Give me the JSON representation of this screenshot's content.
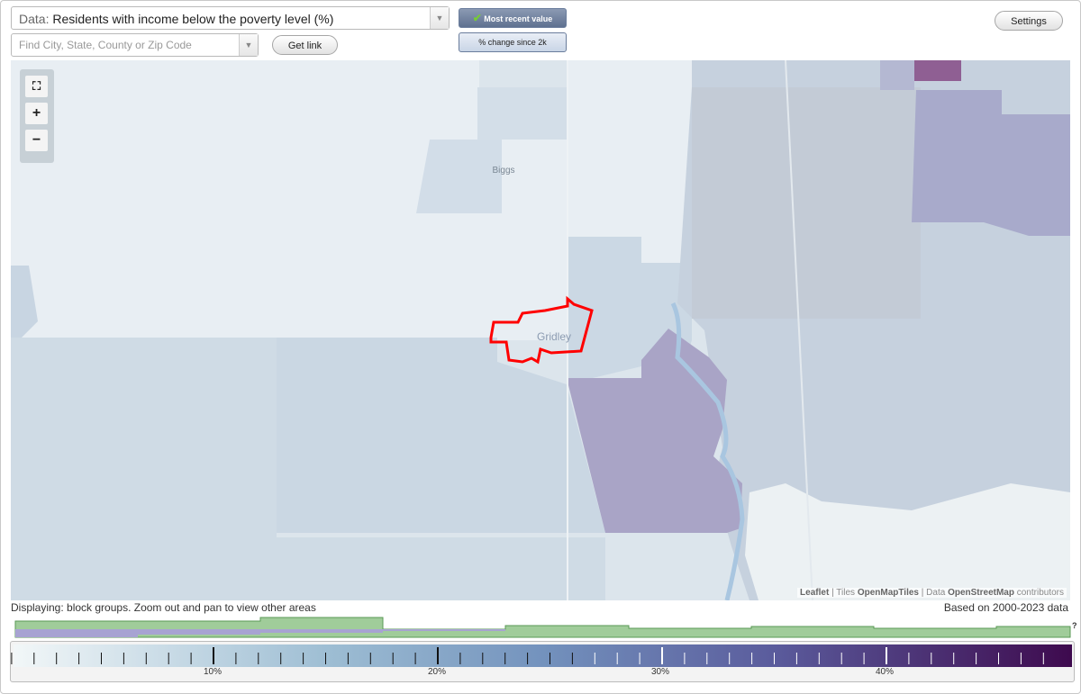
{
  "toolbar": {
    "data_label": "Data:",
    "data_value": "Residents with income below the poverty level (%)",
    "search_placeholder": "Find City, State, County or Zip Code",
    "get_link": "Get link",
    "toggle_recent": "Most recent value",
    "toggle_change": "% change since 2k",
    "settings": "Settings"
  },
  "map": {
    "places": [
      "Biggs",
      "Gridley"
    ],
    "zoom": {
      "fit": "⛶",
      "in": "+",
      "out": "−"
    },
    "attribution": {
      "leaflet": "Leaflet",
      "sep1": "|",
      "tiles": "Tiles",
      "tiles_source": "OpenMapTiles",
      "sep2": "|",
      "data": "Data",
      "data_source": "OpenStreetMap",
      "contributors": "contributors"
    }
  },
  "footer": {
    "displaying": "Displaying: block groups. Zoom out and pan to view other areas",
    "based_on": "Based on 2000-2023 data",
    "help": "?"
  },
  "legend": {
    "labels": [
      "10%",
      "20%",
      "30%",
      "40%"
    ]
  }
}
